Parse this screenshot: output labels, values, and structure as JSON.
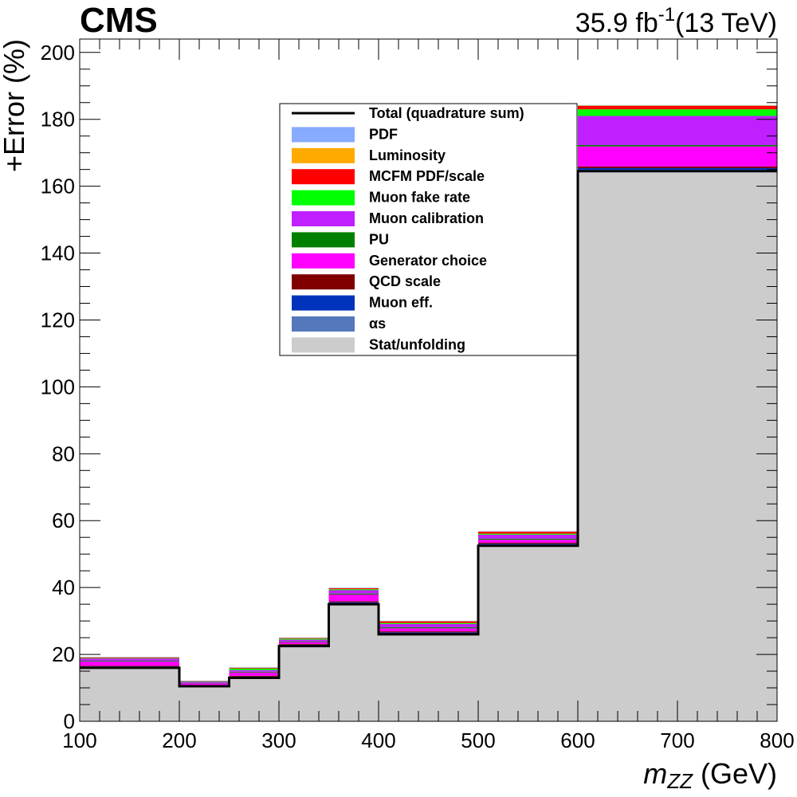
{
  "header": {
    "experiment": "CMS",
    "lumi_value": "35.9 fb",
    "lumi_exponent": "-1",
    "energy": "(13 TeV)"
  },
  "chart_data": {
    "type": "bar",
    "stacked": true,
    "x_edges": [
      100,
      200,
      250,
      300,
      350,
      400,
      500,
      600,
      800
    ],
    "xlim": [
      100,
      800
    ],
    "ylim": [
      0,
      204
    ],
    "x_ticks": [
      100,
      200,
      300,
      400,
      500,
      600,
      700,
      800
    ],
    "y_ticks": [
      0,
      20,
      40,
      60,
      80,
      100,
      120,
      140,
      160,
      180,
      200
    ],
    "xlabel_main": "m",
    "xlabel_sub": "ZZ",
    "xlabel_unit": " (GeV)",
    "ylabel": "+Error (%)",
    "legend_position": "top-center",
    "total": {
      "name": "Total (quadrature sum)",
      "color": "#000000",
      "values": [
        16,
        10.5,
        13,
        22.5,
        35,
        26,
        52.5,
        164.5
      ]
    },
    "series": [
      {
        "name": "Stat/unfolding",
        "color": "#cccccc",
        "values": [
          16,
          10.5,
          13,
          22.5,
          35,
          26,
          52.5,
          164.5
        ]
      },
      {
        "name": "αs",
        "color": "#5577bb",
        "values": [
          0.2,
          0.1,
          0.2,
          0.2,
          0.3,
          0.3,
          0.3,
          0.4
        ]
      },
      {
        "name": "Muon eff.",
        "color": "#0033bb",
        "values": [
          0.2,
          0.1,
          0.2,
          0.2,
          0.3,
          0.3,
          0.3,
          0.5
        ]
      },
      {
        "name": "QCD scale",
        "color": "#800000",
        "values": [
          0.2,
          0.1,
          0.2,
          0.2,
          0.3,
          0.3,
          0.3,
          0.5
        ]
      },
      {
        "name": "Generator choice",
        "color": "#ff00ff",
        "values": [
          1.3,
          0.6,
          1.0,
          0.6,
          2.0,
          0.9,
          0.9,
          6.0
        ]
      },
      {
        "name": "PU",
        "color": "#008000",
        "values": [
          0.2,
          0.1,
          0.2,
          0.2,
          0.3,
          0.3,
          0.3,
          0.4
        ]
      },
      {
        "name": "Muon calibration",
        "color": "#c020ff",
        "values": [
          0.7,
          0.4,
          0.5,
          0.5,
          1.0,
          1.0,
          1.2,
          8.7
        ]
      },
      {
        "name": "Muon fake rate",
        "color": "#00ff00",
        "values": [
          0.1,
          0.05,
          0.5,
          0.3,
          0.3,
          0.3,
          0.3,
          2.0
        ]
      },
      {
        "name": "MCFM PDF/scale",
        "color": "#ff0000",
        "values": [
          0.2,
          0.1,
          0.2,
          0.2,
          0.3,
          0.5,
          0.6,
          1.0
        ]
      },
      {
        "name": "Luminosity",
        "color": "#ffaa00",
        "values": [
          0.1,
          0.05,
          0.1,
          0.1,
          0.1,
          0.1,
          0.1,
          0.2
        ]
      },
      {
        "name": "PDF",
        "color": "#88aaff",
        "values": [
          0.05,
          0.05,
          0.05,
          0.05,
          0.05,
          0.05,
          0.05,
          0.05
        ]
      }
    ],
    "legend_order": [
      "Total (quadrature sum)",
      "PDF",
      "Luminosity",
      "MCFM PDF/scale",
      "Muon fake rate",
      "Muon calibration",
      "PU",
      "Generator choice",
      "QCD scale",
      "Muon eff.",
      "αs",
      "Stat/unfolding"
    ]
  }
}
